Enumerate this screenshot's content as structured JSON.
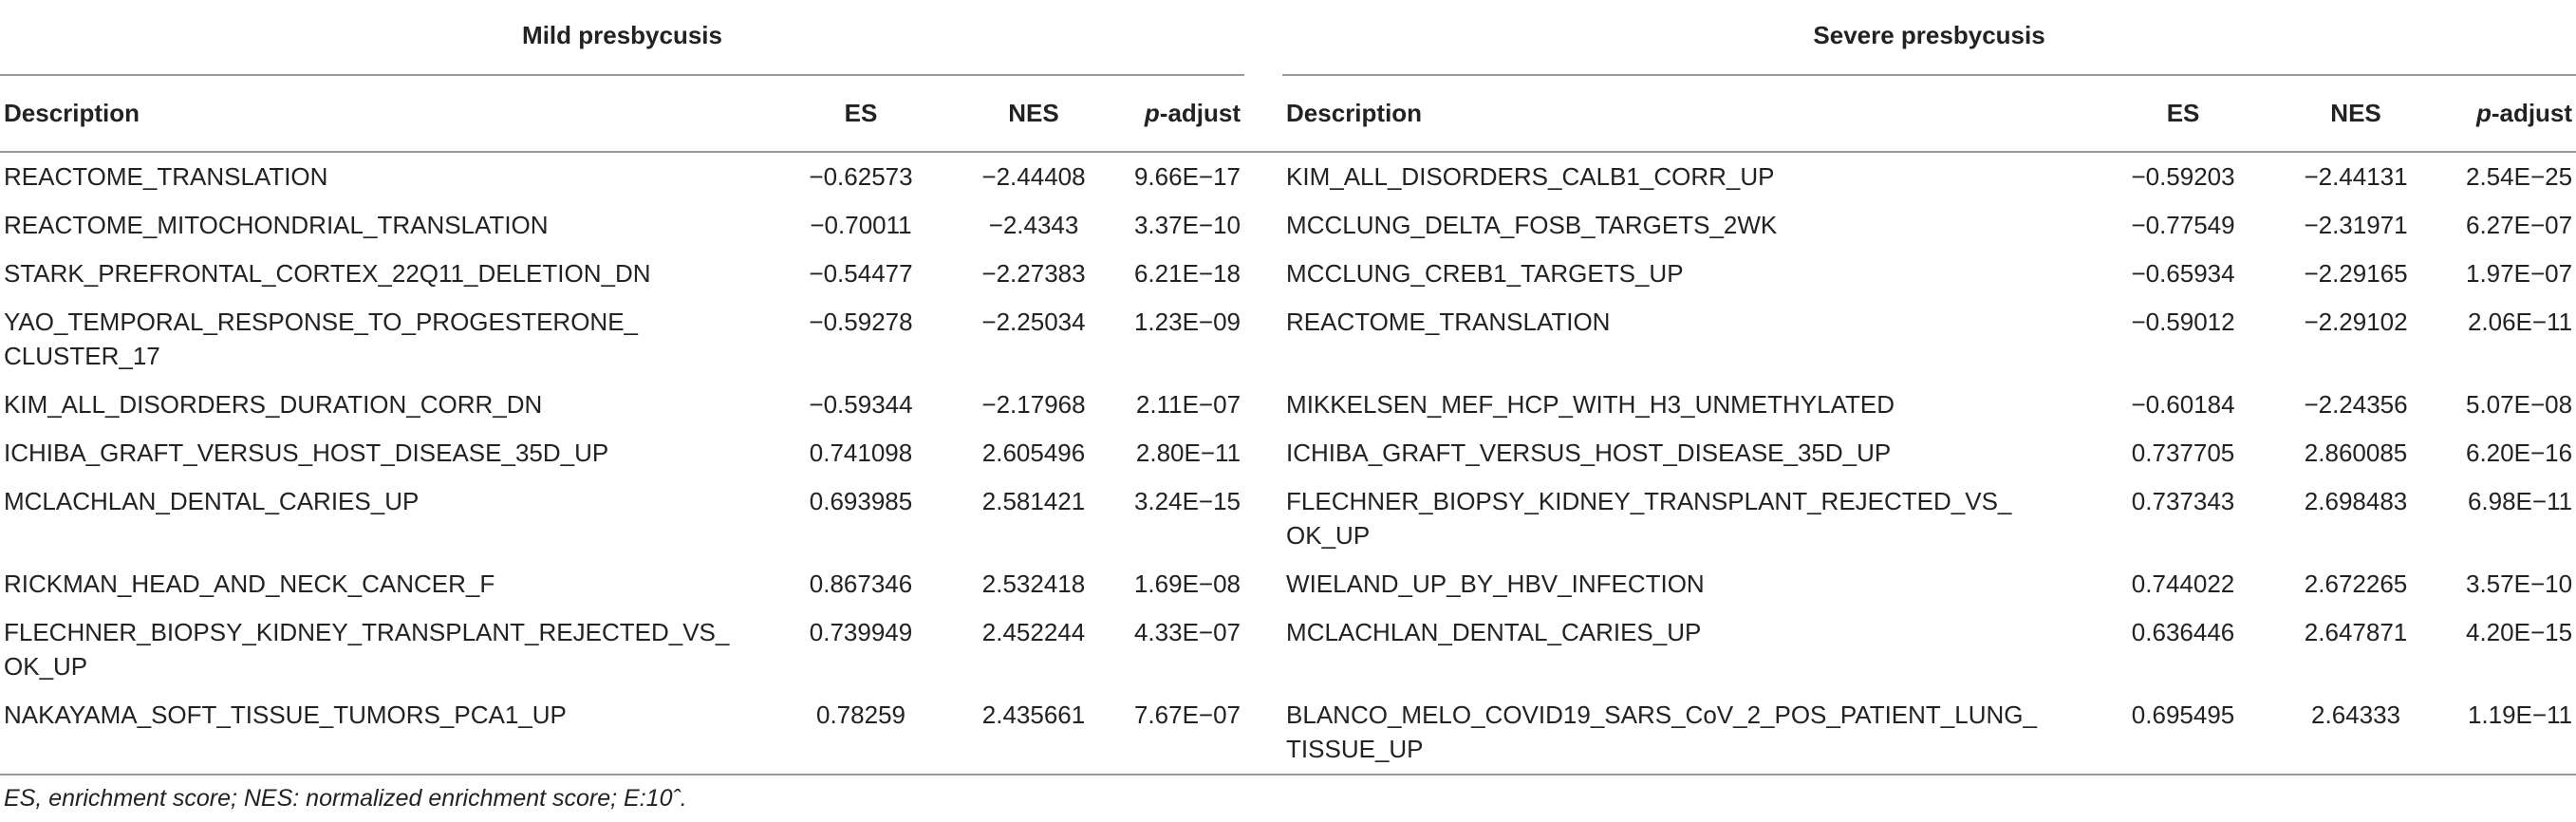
{
  "groups": [
    {
      "title": "Mild presbycusis",
      "columns": [
        "Description",
        "ES",
        "NES",
        "p-adjust"
      ],
      "rows": [
        [
          "REACTOME_TRANSLATION",
          "−0.62573",
          "−2.44408",
          "9.66E−17"
        ],
        [
          "REACTOME_MITOCHONDRIAL_TRANSLATION",
          "−0.70011",
          "−2.4343",
          "3.37E−10"
        ],
        [
          "STARK_PREFRONTAL_CORTEX_22Q11_DELETION_DN",
          "−0.54477",
          "−2.27383",
          "6.21E−18"
        ],
        [
          "YAO_TEMPORAL_RESPONSE_TO_PROGESTERONE_\nCLUSTER_17",
          "−0.59278",
          "−2.25034",
          "1.23E−09"
        ],
        [
          "KIM_ALL_DISORDERS_DURATION_CORR_DN",
          "−0.59344",
          "−2.17968",
          "2.11E−07"
        ],
        [
          "ICHIBA_GRAFT_VERSUS_HOST_DISEASE_35D_UP",
          "0.741098",
          "2.605496",
          "2.80E−11"
        ],
        [
          "MCLACHLAN_DENTAL_CARIES_UP",
          "0.693985",
          "2.581421",
          "3.24E−15"
        ],
        [
          "RICKMAN_HEAD_AND_NECK_CANCER_F",
          "0.867346",
          "2.532418",
          "1.69E−08"
        ],
        [
          "FLECHNER_BIOPSY_KIDNEY_TRANSPLANT_REJECTED_VS_\nOK_UP",
          "0.739949",
          "2.452244",
          "4.33E−07"
        ],
        [
          "NAKAYAMA_SOFT_TISSUE_TUMORS_PCA1_UP",
          "0.78259",
          "2.435661",
          "7.67E−07"
        ]
      ]
    },
    {
      "title": "Severe presbycusis",
      "columns": [
        "Description",
        "ES",
        "NES",
        "p-adjust"
      ],
      "rows": [
        [
          "KIM_ALL_DISORDERS_CALB1_CORR_UP",
          "−0.59203",
          "−2.44131",
          "2.54E−25"
        ],
        [
          "MCCLUNG_DELTA_FOSB_TARGETS_2WK",
          "−0.77549",
          "−2.31971",
          "6.27E−07"
        ],
        [
          "MCCLUNG_CREB1_TARGETS_UP",
          "−0.65934",
          "−2.29165",
          "1.97E−07"
        ],
        [
          "REACTOME_TRANSLATION",
          "−0.59012",
          "−2.29102",
          "2.06E−11"
        ],
        [
          "MIKKELSEN_MEF_HCP_WITH_H3_UNMETHYLATED",
          "−0.60184",
          "−2.24356",
          "5.07E−08"
        ],
        [
          "ICHIBA_GRAFT_VERSUS_HOST_DISEASE_35D_UP",
          "0.737705",
          "2.860085",
          "6.20E−16"
        ],
        [
          "FLECHNER_BIOPSY_KIDNEY_TRANSPLANT_REJECTED_VS_\nOK_UP",
          "0.737343",
          "2.698483",
          "6.98E−11"
        ],
        [
          "WIELAND_UP_BY_HBV_INFECTION",
          "0.744022",
          "2.672265",
          "3.57E−10"
        ],
        [
          "MCLACHLAN_DENTAL_CARIES_UP",
          "0.636446",
          "2.647871",
          "4.20E−15"
        ],
        [
          "BLANCO_MELO_COVID19_SARS_CoV_2_POS_PATIENT_LUNG_\nTISSUE_UP",
          "0.695495",
          "2.64333",
          "1.19E−11"
        ]
      ]
    }
  ],
  "footnote": "ES, enrichment score; NES: normalized enrichment score; E:10ˆ."
}
